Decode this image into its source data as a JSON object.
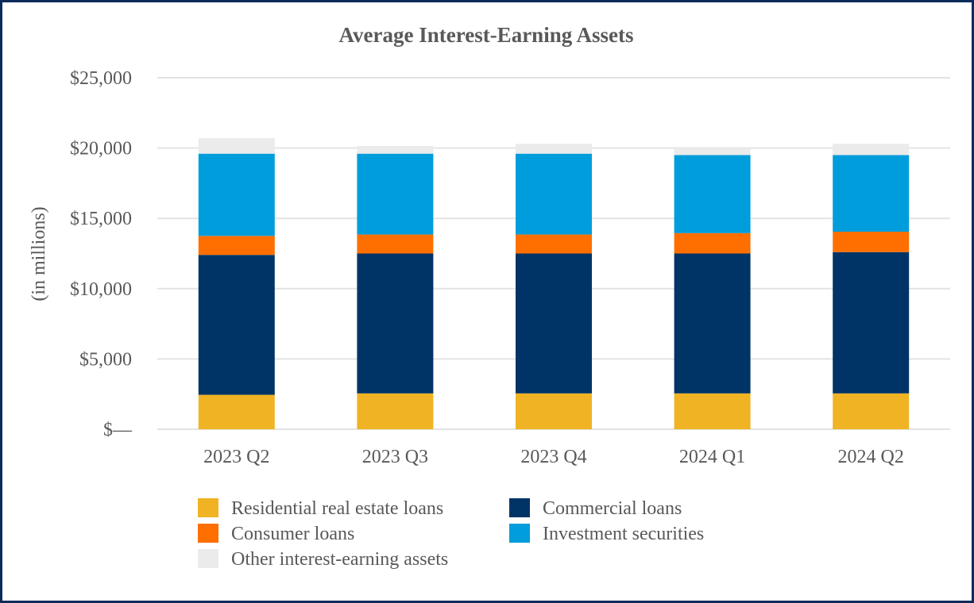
{
  "chart_data": {
    "type": "bar",
    "stacked": true,
    "title": "Average Interest-Earning Assets",
    "xlabel": "",
    "ylabel": "(in millions)",
    "categories": [
      "2023 Q2",
      "2023 Q3",
      "2023 Q4",
      "2024 Q1",
      "2024 Q2"
    ],
    "ylim": [
      0,
      25000
    ],
    "yticks": [
      {
        "value": 0,
        "label": "$—"
      },
      {
        "value": 5000,
        "label": "$5,000"
      },
      {
        "value": 10000,
        "label": "$10,000"
      },
      {
        "value": 15000,
        "label": "$15,000"
      },
      {
        "value": 20000,
        "label": "$20,000"
      },
      {
        "value": 25000,
        "label": "$25,000"
      }
    ],
    "grid": true,
    "legend_position": "bottom",
    "series": [
      {
        "name": "Residential real estate loans",
        "color": "#f0b323",
        "values": [
          2450,
          2550,
          2550,
          2550,
          2550
        ]
      },
      {
        "name": "Commercial loans",
        "color": "#003466",
        "values": [
          9950,
          9950,
          9950,
          9950,
          10050
        ]
      },
      {
        "name": "Consumer loans",
        "color": "#ff6f00",
        "values": [
          1350,
          1350,
          1350,
          1450,
          1450
        ]
      },
      {
        "name": "Investment securities",
        "color": "#009ddc",
        "values": [
          5850,
          5750,
          5750,
          5550,
          5450
        ]
      },
      {
        "name": "Other interest-earning assets",
        "color": "#ebebeb",
        "values": [
          1100,
          550,
          700,
          500,
          800
        ]
      }
    ]
  }
}
